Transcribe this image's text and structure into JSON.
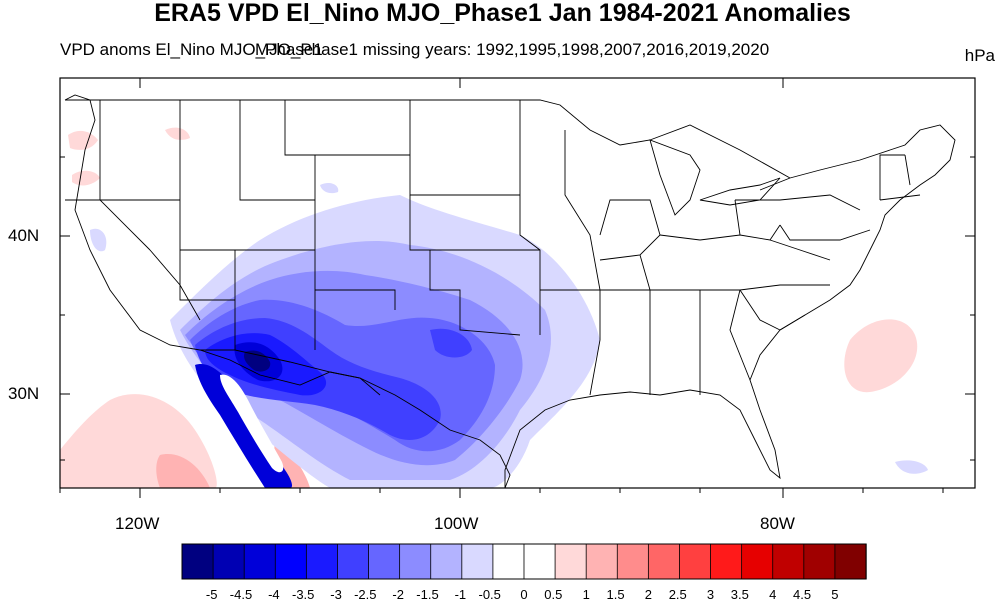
{
  "title": "ERA5 VPD El_Nino MJO_Phase1 Jan 1984-2021 Anomalies",
  "left_string": "VPD anoms El_Nino MJO_Phase1",
  "left_string_overlap": "MJO_Phase1 missing years: 1992,1995,1998,2007,2016,2019,2020",
  "units": "hPa",
  "lat_labels": [
    "40N",
    "30N"
  ],
  "lon_labels": [
    "120W",
    "100W",
    "80W"
  ],
  "colorbar": {
    "labels": [
      "-5",
      "-4.5",
      "-4",
      "-3.5",
      "-3",
      "-2.5",
      "-2",
      "-1.5",
      "-1",
      "-0.5",
      "0",
      "0.5",
      "1",
      "1.5",
      "2",
      "2.5",
      "3",
      "3.5",
      "4",
      "4.5",
      "5"
    ],
    "colors": [
      "#000080",
      "#0000b3",
      "#0000d9",
      "#0000ff",
      "#1a1aff",
      "#4040ff",
      "#6666ff",
      "#8c8cff",
      "#b3b3ff",
      "#d9d9ff",
      "#ffffff",
      "#ffffff",
      "#ffd9d9",
      "#ffb3b3",
      "#ff8c8c",
      "#ff6666",
      "#ff4040",
      "#ff1a1a",
      "#e60000",
      "#c00000",
      "#a00000",
      "#800000"
    ]
  }
}
